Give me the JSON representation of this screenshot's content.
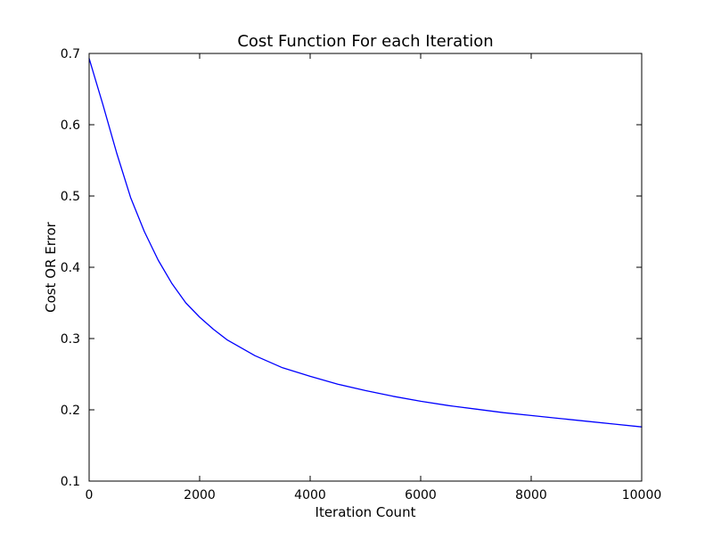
{
  "chart_data": {
    "type": "line",
    "title": "Cost Function For each Iteration",
    "xlabel": "Iteration Count",
    "ylabel": "Cost OR Error",
    "xlim": [
      0,
      10000
    ],
    "ylim": [
      0.1,
      0.7
    ],
    "xticks": [
      0,
      2000,
      4000,
      6000,
      8000,
      10000
    ],
    "xtick_labels": [
      "0",
      "2000",
      "4000",
      "6000",
      "8000",
      "10000"
    ],
    "yticks": [
      0.1,
      0.2,
      0.3,
      0.4,
      0.5,
      0.6,
      0.7
    ],
    "ytick_labels": [
      "0.1",
      "0.2",
      "0.3",
      "0.4",
      "0.5",
      "0.6",
      "0.7"
    ],
    "grid": false,
    "line_color": "#0000ff",
    "series": [
      {
        "x": [
          0,
          100,
          250,
          500,
          750,
          1000,
          1250,
          1500,
          1750,
          2000,
          2250,
          2500,
          3000,
          3500,
          4000,
          4500,
          5000,
          5500,
          6000,
          6500,
          7000,
          7500,
          8000,
          8500,
          9000,
          9500,
          10000
        ],
        "y": [
          0.693,
          0.667,
          0.628,
          0.56,
          0.498,
          0.45,
          0.41,
          0.377,
          0.35,
          0.33,
          0.313,
          0.298,
          0.276,
          0.259,
          0.247,
          0.236,
          0.227,
          0.219,
          0.212,
          0.206,
          0.201,
          0.196,
          0.192,
          0.188,
          0.184,
          0.18,
          0.176
        ]
      }
    ]
  }
}
